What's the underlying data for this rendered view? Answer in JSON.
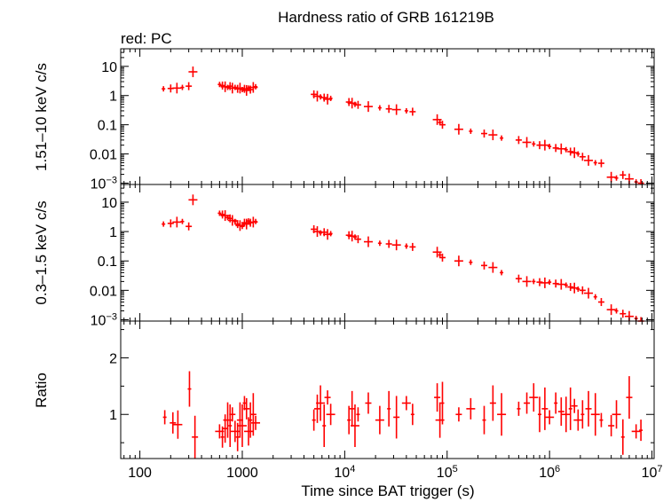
{
  "title": "Hardness ratio of GRB 161219B",
  "legend": "red: PC",
  "colors": {
    "data": "#ff0000",
    "axes": "#000000"
  },
  "xaxis": {
    "label": "Time since BAT trigger (s)",
    "scale": "log",
    "range": [
      65,
      10500000
    ],
    "ticks": [
      {
        "value": 100,
        "label": "100",
        "sup": ""
      },
      {
        "value": 1000,
        "label": "1000",
        "sup": ""
      },
      {
        "value": 10000,
        "label": "10",
        "sup": "4"
      },
      {
        "value": 100000,
        "label": "10",
        "sup": "5"
      },
      {
        "value": 1000000,
        "label": "10",
        "sup": "6"
      },
      {
        "value": 10000000,
        "label": "10",
        "sup": "7"
      }
    ]
  },
  "chart_data": [
    {
      "type": "scatter",
      "panel": "hard",
      "ylabel": "1.51–10 keV c/s",
      "yscale": "log",
      "ylim": [
        0.0009,
        40
      ],
      "yticks": [
        {
          "value": 10,
          "label": "10",
          "sup": ""
        },
        {
          "value": 1,
          "label": "1",
          "sup": ""
        },
        {
          "value": 0.1,
          "label": "0.1",
          "sup": ""
        },
        {
          "value": 0.01,
          "label": "0.01",
          "sup": ""
        },
        {
          "value": 0.001,
          "label": "10",
          "sup": "−3"
        }
      ],
      "series": [
        {
          "color": "#ff0000",
          "points": [
            [
              170,
              1.7
            ],
            [
              200,
              1.75
            ],
            [
              230,
              1.8
            ],
            [
              260,
              1.9
            ],
            [
              300,
              2.1
            ],
            [
              330,
              6.5
            ],
            [
              600,
              2.4
            ],
            [
              640,
              2.2
            ],
            [
              680,
              2.0
            ],
            [
              720,
              1.9
            ],
            [
              760,
              2.1
            ],
            [
              800,
              1.8
            ],
            [
              850,
              1.9
            ],
            [
              900,
              1.7
            ],
            [
              950,
              1.8
            ],
            [
              1000,
              1.6
            ],
            [
              1050,
              1.7
            ],
            [
              1100,
              1.5
            ],
            [
              1150,
              1.8
            ],
            [
              1200,
              1.6
            ],
            [
              1280,
              1.9
            ],
            [
              1350,
              2.0
            ],
            [
              5000,
              1.1
            ],
            [
              5400,
              0.95
            ],
            [
              5800,
              0.9
            ],
            [
              6300,
              0.85
            ],
            [
              6800,
              0.75
            ],
            [
              7300,
              0.8
            ],
            [
              11000,
              0.6
            ],
            [
              11800,
              0.55
            ],
            [
              12600,
              0.5
            ],
            [
              13500,
              0.48
            ],
            [
              17000,
              0.42
            ],
            [
              22000,
              0.38
            ],
            [
              27000,
              0.35
            ],
            [
              32000,
              0.33
            ],
            [
              40000,
              0.3
            ],
            [
              46000,
              0.28
            ],
            [
              80000,
              0.15
            ],
            [
              85000,
              0.12
            ],
            [
              90000,
              0.1
            ],
            [
              130000,
              0.07
            ],
            [
              170000,
              0.06
            ],
            [
              230000,
              0.05
            ],
            [
              280000,
              0.045
            ],
            [
              340000,
              0.035
            ],
            [
              500000,
              0.03
            ],
            [
              600000,
              0.025
            ],
            [
              700000,
              0.022
            ],
            [
              800000,
              0.02
            ],
            [
              900000,
              0.02
            ],
            [
              1000000,
              0.018
            ],
            [
              1150000,
              0.016
            ],
            [
              1300000,
              0.015
            ],
            [
              1450000,
              0.014
            ],
            [
              1600000,
              0.012
            ],
            [
              1750000,
              0.011
            ],
            [
              1900000,
              0.01
            ],
            [
              2100000,
              0.008
            ],
            [
              2400000,
              0.006
            ],
            [
              2800000,
              0.005
            ],
            [
              3200000,
              0.0048
            ],
            [
              4000000,
              0.0016
            ],
            [
              4500000,
              0.0015
            ],
            [
              5200000,
              0.0019
            ],
            [
              6000000,
              0.0014
            ],
            [
              7000000,
              0.0011
            ],
            [
              7800000,
              0.001
            ]
          ]
        }
      ]
    },
    {
      "type": "scatter",
      "panel": "soft",
      "ylabel": "0.3–1.5 keV c/s",
      "yscale": "log",
      "ylim": [
        0.0009,
        40
      ],
      "yticks": [
        {
          "value": 10,
          "label": "10",
          "sup": ""
        },
        {
          "value": 1,
          "label": "1",
          "sup": ""
        },
        {
          "value": 0.1,
          "label": "0.1",
          "sup": ""
        },
        {
          "value": 0.01,
          "label": "0.01",
          "sup": ""
        },
        {
          "value": 0.001,
          "label": "10",
          "sup": "−3"
        }
      ],
      "series": [
        {
          "color": "#ff0000",
          "points": [
            [
              170,
              1.8
            ],
            [
              200,
              1.9
            ],
            [
              230,
              2.1
            ],
            [
              260,
              2.2
            ],
            [
              300,
              1.5
            ],
            [
              330,
              12
            ],
            [
              600,
              4.2
            ],
            [
              640,
              3.8
            ],
            [
              680,
              3.5
            ],
            [
              720,
              3.0
            ],
            [
              760,
              2.8
            ],
            [
              800,
              2.4
            ],
            [
              850,
              2.2
            ],
            [
              900,
              1.8
            ],
            [
              950,
              1.6
            ],
            [
              1000,
              1.5
            ],
            [
              1050,
              2.0
            ],
            [
              1100,
              1.8
            ],
            [
              1150,
              2.3
            ],
            [
              1200,
              2.0
            ],
            [
              1280,
              2.1
            ],
            [
              1350,
              2.2
            ],
            [
              5000,
              1.2
            ],
            [
              5400,
              1.0
            ],
            [
              5800,
              0.9
            ],
            [
              6300,
              0.95
            ],
            [
              6800,
              0.8
            ],
            [
              7300,
              0.85
            ],
            [
              11000,
              0.75
            ],
            [
              11800,
              0.7
            ],
            [
              12600,
              0.65
            ],
            [
              13500,
              0.55
            ],
            [
              17000,
              0.45
            ],
            [
              22000,
              0.4
            ],
            [
              27000,
              0.38
            ],
            [
              32000,
              0.35
            ],
            [
              40000,
              0.32
            ],
            [
              46000,
              0.3
            ],
            [
              80000,
              0.2
            ],
            [
              85000,
              0.16
            ],
            [
              90000,
              0.13
            ],
            [
              130000,
              0.1
            ],
            [
              170000,
              0.09
            ],
            [
              230000,
              0.07
            ],
            [
              280000,
              0.06
            ],
            [
              340000,
              0.04
            ],
            [
              500000,
              0.025
            ],
            [
              600000,
              0.02
            ],
            [
              700000,
              0.02
            ],
            [
              800000,
              0.019
            ],
            [
              900000,
              0.018
            ],
            [
              1000000,
              0.019
            ],
            [
              1150000,
              0.017
            ],
            [
              1300000,
              0.016
            ],
            [
              1450000,
              0.015
            ],
            [
              1600000,
              0.013
            ],
            [
              1750000,
              0.012
            ],
            [
              1900000,
              0.011
            ],
            [
              2100000,
              0.01
            ],
            [
              2400000,
              0.008
            ],
            [
              2800000,
              0.006
            ],
            [
              3200000,
              0.004
            ],
            [
              4000000,
              0.0022
            ],
            [
              4500000,
              0.002
            ],
            [
              5200000,
              0.0016
            ],
            [
              6000000,
              0.0013
            ],
            [
              7000000,
              0.0011
            ],
            [
              7800000,
              0.0009
            ]
          ]
        }
      ]
    },
    {
      "type": "scatter",
      "panel": "ratio",
      "ylabel": "Ratio",
      "yscale": "linear",
      "ylim": [
        0.22,
        2.65
      ],
      "yticks": [
        {
          "value": 1,
          "label": "1",
          "sup": ""
        },
        {
          "value": 2,
          "label": "2",
          "sup": ""
        }
      ],
      "series": [
        {
          "color": "#ff0000",
          "points": [
            [
              175,
              0.95
            ],
            [
              210,
              0.85
            ],
            [
              235,
              0.82
            ],
            [
              305,
              1.45
            ],
            [
              345,
              0.6
            ],
            [
              600,
              0.7
            ],
            [
              640,
              0.6
            ],
            [
              680,
              0.75
            ],
            [
              720,
              0.9
            ],
            [
              760,
              0.8
            ],
            [
              800,
              1.0
            ],
            [
              850,
              0.7
            ],
            [
              900,
              0.6
            ],
            [
              950,
              0.9
            ],
            [
              1000,
              0.8
            ],
            [
              1050,
              1.2
            ],
            [
              1100,
              1.1
            ],
            [
              1150,
              0.7
            ],
            [
              1200,
              0.9
            ],
            [
              1280,
              1.0
            ],
            [
              1350,
              0.85
            ],
            [
              5000,
              0.9
            ],
            [
              5400,
              1.1
            ],
            [
              5800,
              1.2
            ],
            [
              6300,
              0.8
            ],
            [
              6800,
              1.3
            ],
            [
              7300,
              1.0
            ],
            [
              11000,
              0.9
            ],
            [
              11800,
              1.1
            ],
            [
              12600,
              0.8
            ],
            [
              13500,
              1.0
            ],
            [
              17000,
              1.2
            ],
            [
              22000,
              0.9
            ],
            [
              27000,
              1.1
            ],
            [
              32000,
              0.95
            ],
            [
              40000,
              1.2
            ],
            [
              46000,
              1.0
            ],
            [
              80000,
              1.3
            ],
            [
              85000,
              0.9
            ],
            [
              90000,
              1.2
            ],
            [
              130000,
              1.0
            ],
            [
              170000,
              1.1
            ],
            [
              230000,
              0.9
            ],
            [
              280000,
              1.2
            ],
            [
              340000,
              1.0
            ],
            [
              500000,
              1.1
            ],
            [
              600000,
              1.2
            ],
            [
              700000,
              1.3
            ],
            [
              800000,
              1.0
            ],
            [
              900000,
              1.1
            ],
            [
              1000000,
              0.95
            ],
            [
              1150000,
              1.2
            ],
            [
              1300000,
              1.05
            ],
            [
              1450000,
              1.0
            ],
            [
              1600000,
              1.1
            ],
            [
              1750000,
              1.15
            ],
            [
              1900000,
              0.9
            ],
            [
              2100000,
              1.0
            ],
            [
              2400000,
              1.1
            ],
            [
              2800000,
              1.0
            ],
            [
              3200000,
              0.9
            ],
            [
              4000000,
              0.8
            ],
            [
              4500000,
              1.0
            ],
            [
              5200000,
              0.6
            ],
            [
              6000000,
              1.3
            ],
            [
              7000000,
              0.7
            ],
            [
              7800000,
              0.72
            ]
          ]
        }
      ]
    }
  ]
}
